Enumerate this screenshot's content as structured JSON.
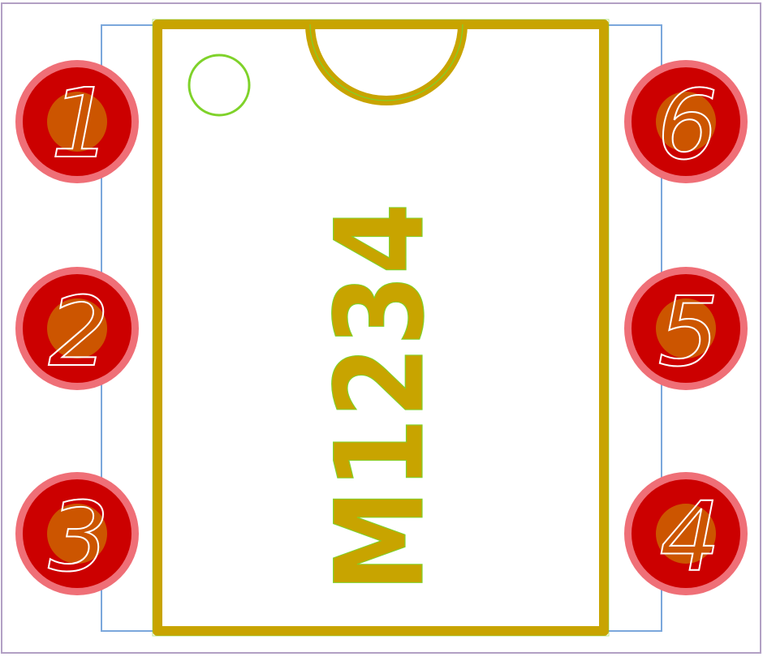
{
  "component": {
    "name": "M1234"
  },
  "pads": [
    {
      "number": "1",
      "side": "left"
    },
    {
      "number": "2",
      "side": "left"
    },
    {
      "number": "3",
      "side": "left"
    },
    {
      "number": "6",
      "side": "right"
    },
    {
      "number": "5",
      "side": "right"
    },
    {
      "number": "4",
      "side": "right"
    }
  ],
  "colors": {
    "board_outline": "#b2a0c4",
    "courtyard": "#7ba7dc",
    "silkscreen": "#c8a400",
    "silkscreen_edge": "#7fd22a",
    "pad_outer": "#ef6f77",
    "pad_copper": "#cc0000",
    "pad_drill": "#cc5500",
    "pad_label": "#ffffff",
    "pin1_marker": "#7fd22a"
  },
  "icons": {
    "pin1_marker": "circle-outline",
    "notch": "semicircle-notch"
  }
}
